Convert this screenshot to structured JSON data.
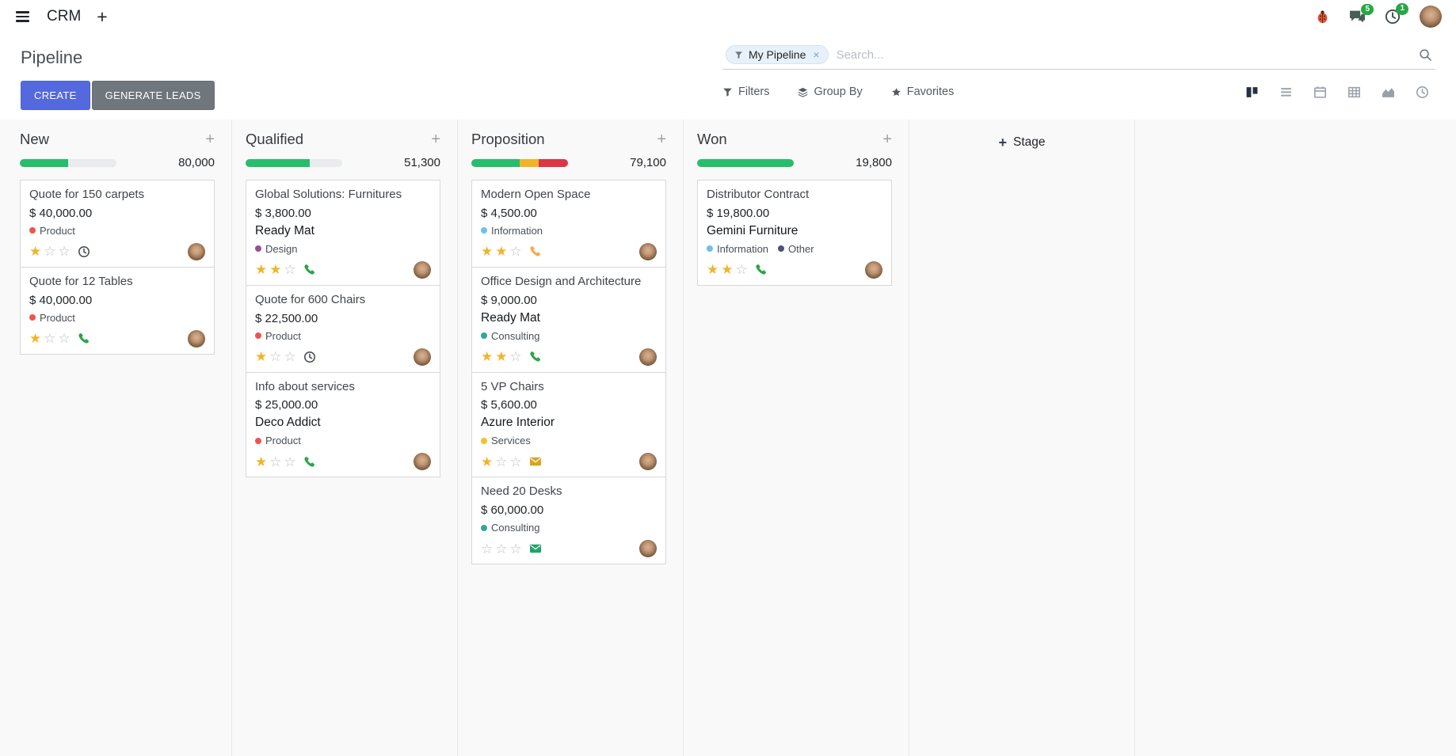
{
  "navbar": {
    "app_name": "CRM",
    "messages_badge": "5",
    "activities_badge": "1"
  },
  "control_panel": {
    "title": "Pipeline",
    "create_label": "CREATE",
    "generate_leads_label": "GENERATE LEADS",
    "search": {
      "facet_label": "My Pipeline",
      "placeholder": "Search..."
    },
    "filters_label": "Filters",
    "group_by_label": "Group By",
    "favorites_label": "Favorites"
  },
  "icons": {
    "plus": "+",
    "close": "×",
    "star_filled": "★",
    "star_empty": "☆"
  },
  "kanban": {
    "add_stage_label": "Stage",
    "columns": [
      {
        "name": "New",
        "total": "80,000",
        "progress": [
          {
            "color": "#28bd6d",
            "pct": 50
          },
          {
            "color": "#e9ecef",
            "pct": 50
          }
        ],
        "cards": [
          {
            "title": "Quote for 150 carpets",
            "amount": "$ 40,000.00",
            "tags": [
              {
                "label": "Product",
                "color": "#ef5350"
              }
            ],
            "stars": 1,
            "activity": {
              "type": "clock",
              "color": "#495057"
            }
          },
          {
            "title": "Quote for 12 Tables",
            "amount": "$ 40,000.00",
            "tags": [
              {
                "label": "Product",
                "color": "#ef5350"
              }
            ],
            "stars": 1,
            "activity": {
              "type": "phone",
              "color": "#28a745"
            }
          }
        ]
      },
      {
        "name": "Qualified",
        "total": "51,300",
        "progress": [
          {
            "color": "#28bd6d",
            "pct": 66
          },
          {
            "color": "#e9ecef",
            "pct": 34
          }
        ],
        "cards": [
          {
            "title": "Global Solutions: Furnitures",
            "amount": "$ 3,800.00",
            "partner": "Ready Mat",
            "tags": [
              {
                "label": "Design",
                "color": "#9b4d96"
              }
            ],
            "stars": 2,
            "activity": {
              "type": "phone",
              "color": "#28a745"
            }
          },
          {
            "title": "Quote for 600 Chairs",
            "amount": "$ 22,500.00",
            "tags": [
              {
                "label": "Product",
                "color": "#ef5350"
              }
            ],
            "stars": 1,
            "activity": {
              "type": "clock",
              "color": "#495057"
            }
          },
          {
            "title": "Info about services",
            "amount": "$ 25,000.00",
            "partner": "Deco Addict",
            "tags": [
              {
                "label": "Product",
                "color": "#ef5350"
              }
            ],
            "stars": 1,
            "activity": {
              "type": "phone",
              "color": "#28a745"
            }
          }
        ]
      },
      {
        "name": "Proposition",
        "total": "79,100",
        "progress": [
          {
            "color": "#28bd6d",
            "pct": 50
          },
          {
            "color": "#f0b429",
            "pct": 20
          },
          {
            "color": "#dc3545",
            "pct": 30
          }
        ],
        "cards": [
          {
            "title": "Modern Open Space",
            "amount": "$ 4,500.00",
            "tags": [
              {
                "label": "Information",
                "color": "#6cc1ed"
              }
            ],
            "stars": 2,
            "activity": {
              "type": "phone",
              "color": "#f0ad4e"
            }
          },
          {
            "title": "Office Design and Architecture",
            "amount": "$ 9,000.00",
            "partner": "Ready Mat",
            "tags": [
              {
                "label": "Consulting",
                "color": "#2fa79e"
              }
            ],
            "stars": 2,
            "activity": {
              "type": "phone",
              "color": "#28a745"
            }
          },
          {
            "title": "5 VP Chairs",
            "amount": "$ 5,600.00",
            "partner": "Azure Interior",
            "tags": [
              {
                "label": "Services",
                "color": "#efc22b"
              }
            ],
            "stars": 1,
            "activity": {
              "type": "mail",
              "color": "#d9a521"
            }
          },
          {
            "title": "Need 20 Desks",
            "amount": "$ 60,000.00",
            "tags": [
              {
                "label": "Consulting",
                "color": "#2fa79e"
              }
            ],
            "stars": 0,
            "activity": {
              "type": "mail",
              "color": "#23a46d"
            }
          }
        ]
      },
      {
        "name": "Won",
        "total": "19,800",
        "progress": [
          {
            "color": "#28bd6d",
            "pct": 100
          }
        ],
        "cards": [
          {
            "title": "Distributor Contract",
            "amount": "$ 19,800.00",
            "partner": "Gemini Furniture",
            "tags": [
              {
                "label": "Information",
                "color": "#6cc1ed"
              },
              {
                "label": "Other",
                "color": "#475577"
              }
            ],
            "stars": 2,
            "activity": {
              "type": "phone",
              "color": "#28a745"
            }
          }
        ]
      }
    ]
  }
}
